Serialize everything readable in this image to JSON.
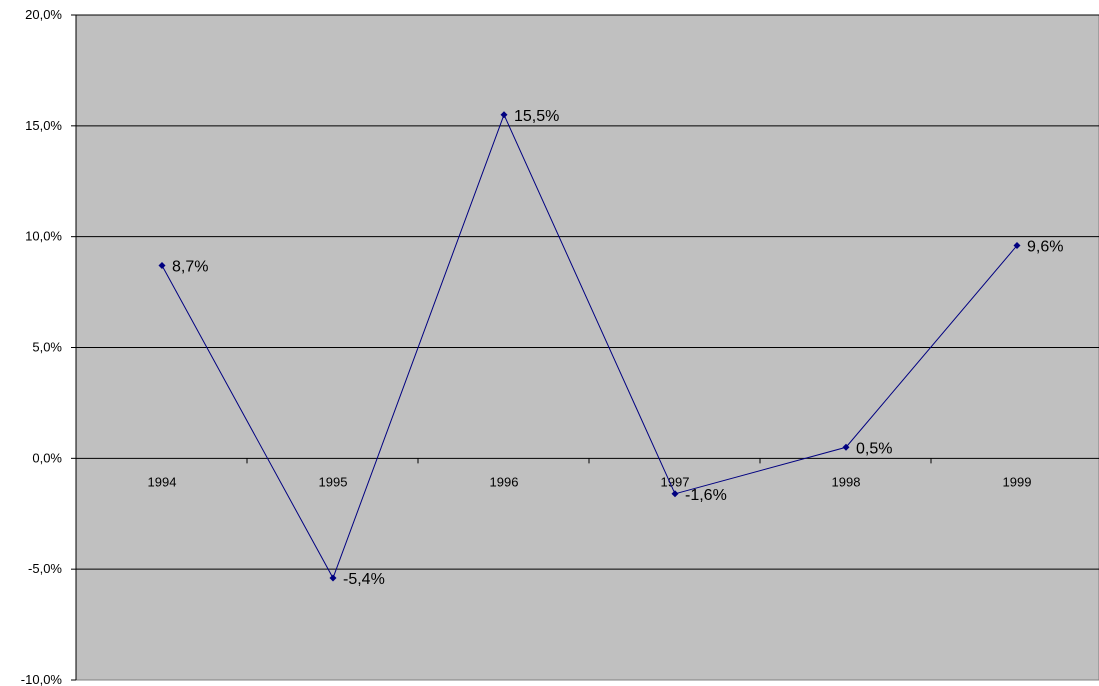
{
  "chart_data": {
    "type": "line",
    "title": "",
    "xlabel": "",
    "ylabel": "",
    "categories": [
      "1994",
      "1995",
      "1996",
      "1997",
      "1998",
      "1999"
    ],
    "series": [
      {
        "values": [
          8.7,
          -5.4,
          15.5,
          -1.6,
          0.5,
          9.6
        ],
        "labels": [
          "8,7%",
          "-5,4%",
          "15,5%",
          "-1,6%",
          "0,5%",
          "9,6%"
        ],
        "color": "#000080"
      }
    ],
    "ylim": [
      -10,
      20
    ],
    "yticks": [
      -10,
      -5,
      0,
      5,
      10,
      15,
      20
    ],
    "ytick_labels": [
      "-10,0%",
      "-5,0%",
      "0,0%",
      "5,0%",
      "10,0%",
      "15,0%",
      "20,0%"
    ],
    "grid": true,
    "plot_background": "#C0C0C0",
    "gridline_color": "#000000",
    "legend": "none"
  }
}
